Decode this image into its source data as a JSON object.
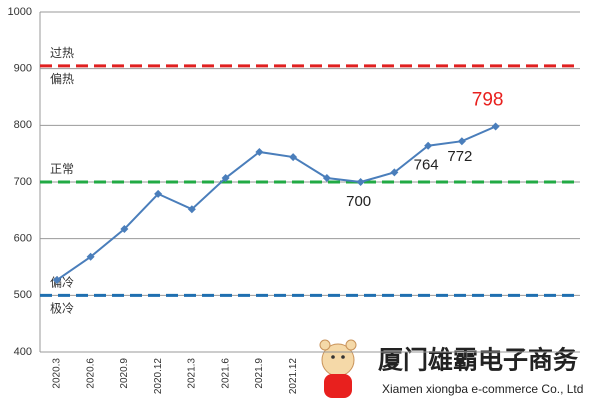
{
  "chart_data": {
    "type": "line",
    "categories": [
      "2020.3",
      "2020.6",
      "2020.9",
      "2020.12",
      "2021.3",
      "2021.6",
      "2021.9",
      "2021.12",
      null,
      null,
      null,
      null,
      null,
      null,
      null,
      null
    ],
    "series": [
      {
        "color": "#4a7ebb",
        "values": [
          527,
          568,
          617,
          679,
          652,
          707,
          753,
          744,
          707,
          700,
          717,
          764,
          772,
          798,
          null,
          null
        ]
      }
    ],
    "ylim": [
      400,
      1000
    ],
    "yticks": [
      400,
      500,
      600,
      700,
      800,
      900,
      1000
    ],
    "grid": true,
    "data_labels": [
      9,
      11,
      12,
      13
    ],
    "highlight_label": 13,
    "highlight_color": "#e8201e",
    "reference_lines": [
      {
        "value": 905,
        "color": "#e02020",
        "above": "过热",
        "below": "偏热"
      },
      {
        "value": 700,
        "color": "#22aa44",
        "above": "正常"
      },
      {
        "value": 500,
        "color": "#1f6fb0",
        "above": "偏冷",
        "below": "极冷"
      }
    ]
  },
  "watermark": {
    "name": "厦门雄霸电子商务",
    "english": "Xiamen xiongba e-commerce Co., Ltd"
  }
}
